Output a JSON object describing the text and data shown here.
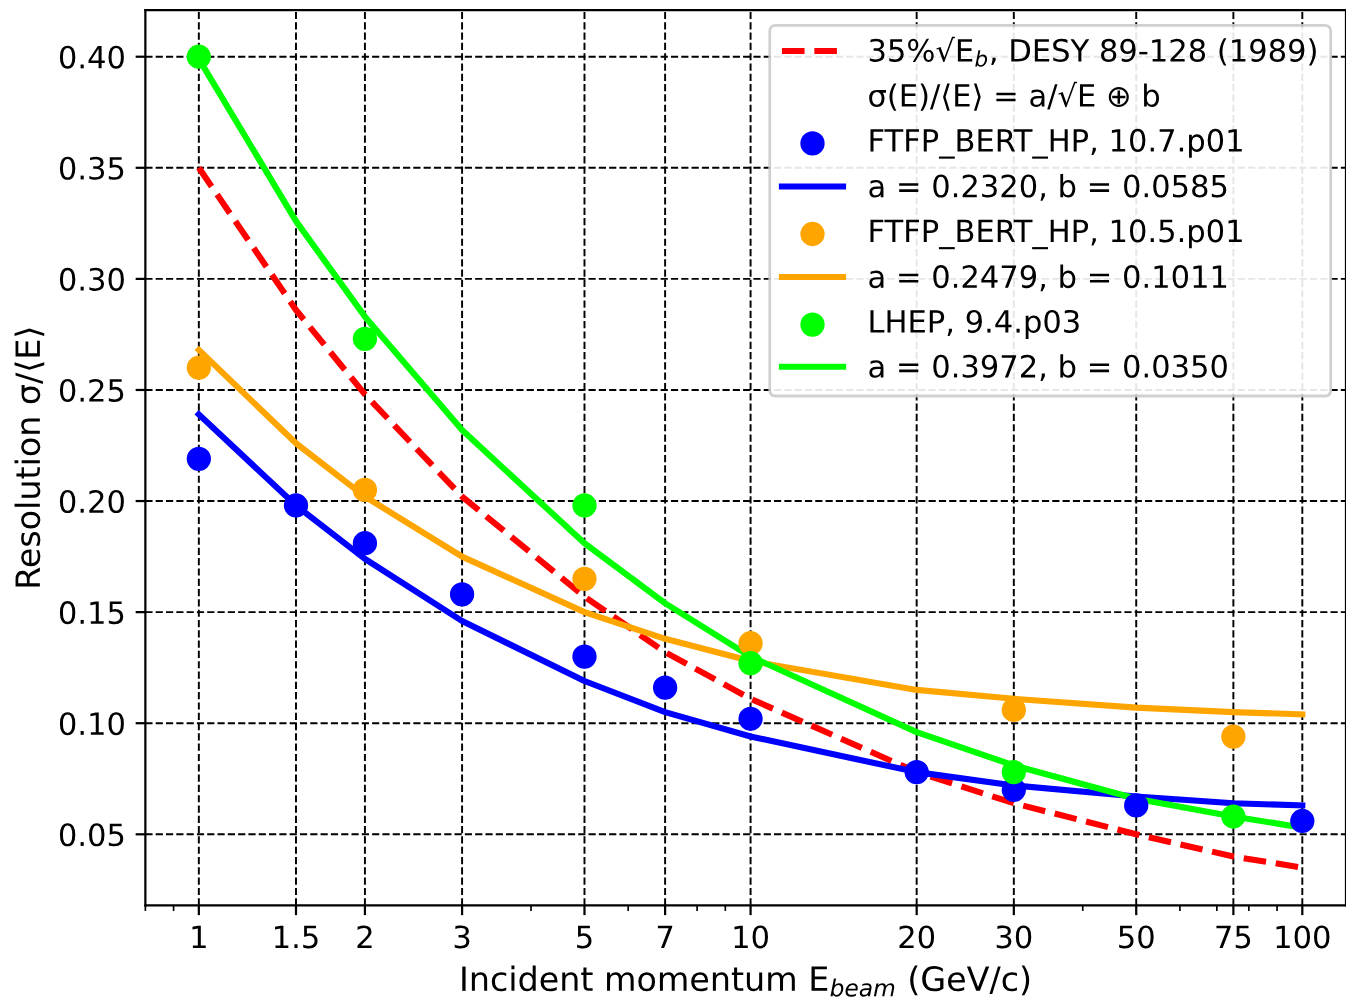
{
  "chart_data": {
    "type": "line",
    "xlabel": "Incident momentum E$_{beam}$ (GeV/c)",
    "ylabel": "Resolution σ/⟨E⟩",
    "log": "x",
    "xlim": [
      0.8,
      120
    ],
    "ylim": [
      0.018,
      0.421
    ],
    "xticks": [
      1,
      1.5,
      2,
      3,
      5,
      7,
      10,
      20,
      30,
      50,
      75,
      100
    ],
    "yticks": [
      {
        "value": 0.05,
        "label": "0.05"
      },
      {
        "value": 0.1,
        "label": "0.10"
      },
      {
        "value": 0.15,
        "label": "0.15"
      },
      {
        "value": 0.2,
        "label": "0.20"
      },
      {
        "value": 0.25,
        "label": "0.25"
      },
      {
        "value": 0.3,
        "label": "0.30"
      },
      {
        "value": 0.35,
        "label": "0.35"
      },
      {
        "value": 0.4,
        "label": "0.40"
      }
    ],
    "grid": true,
    "legend": "top right",
    "annotations": [
      "σ(E)/⟨E⟩ = a/√E ⊕ b"
    ],
    "series": [
      {
        "name": "35%√E$_{b}$, DESY 89-128 (1989)",
        "line_style": "dashed",
        "color": "#ff0000",
        "x": [
          1,
          1.5,
          2,
          3,
          5,
          7,
          10,
          20,
          30,
          50,
          75,
          100
        ],
        "values": [
          0.35,
          0.286,
          0.248,
          0.202,
          0.157,
          0.132,
          0.111,
          0.078,
          0.064,
          0.05,
          0.04,
          0.035
        ]
      },
      {
        "name": "FTFP_BERT_HP, 10.7.p01",
        "type": "scatter",
        "marker": "circle",
        "color": "#0000ff",
        "x": [
          1,
          1.5,
          2,
          3,
          5,
          7,
          10,
          20,
          30,
          50,
          100
        ],
        "values": [
          0.219,
          0.198,
          0.181,
          0.158,
          0.13,
          0.116,
          0.102,
          0.078,
          0.07,
          0.063,
          0.056
        ]
      },
      {
        "name": "a = 0.2320, b = 0.0585",
        "line_style": "solid",
        "color": "#0000ff",
        "x": [
          1,
          1.5,
          2,
          3,
          5,
          7,
          10,
          20,
          30,
          50,
          75,
          100
        ],
        "values": [
          0.239,
          0.198,
          0.174,
          0.146,
          0.119,
          0.105,
          0.094,
          0.078,
          0.072,
          0.067,
          0.064,
          0.063
        ]
      },
      {
        "name": "FTFP_BERT_HP, 10.5.p01",
        "type": "scatter",
        "marker": "circle",
        "color": "#ffa500",
        "x": [
          1,
          2,
          5,
          10,
          30,
          75
        ],
        "values": [
          0.26,
          0.205,
          0.165,
          0.136,
          0.106,
          0.094
        ]
      },
      {
        "name": "a = 0.2479, b = 0.1011",
        "line_style": "solid",
        "color": "#ffa500",
        "x": [
          1,
          1.5,
          2,
          3,
          5,
          7,
          10,
          20,
          30,
          50,
          75,
          100
        ],
        "values": [
          0.268,
          0.226,
          0.202,
          0.175,
          0.15,
          0.138,
          0.128,
          0.115,
          0.111,
          0.107,
          0.105,
          0.104
        ]
      },
      {
        "name": "LHEP, 9.4.p03",
        "type": "scatter",
        "marker": "circle",
        "color": "#00ff00",
        "x": [
          1,
          2,
          5,
          10,
          30,
          75
        ],
        "values": [
          0.4,
          0.273,
          0.198,
          0.127,
          0.078,
          0.058
        ]
      },
      {
        "name": "a = 0.3972, b = 0.0350",
        "line_style": "solid",
        "color": "#00ff00",
        "x": [
          1,
          1.5,
          2,
          3,
          5,
          7,
          10,
          20,
          30,
          50,
          75,
          100
        ],
        "values": [
          0.399,
          0.326,
          0.283,
          0.232,
          0.181,
          0.154,
          0.13,
          0.096,
          0.081,
          0.066,
          0.058,
          0.053
        ]
      }
    ]
  }
}
